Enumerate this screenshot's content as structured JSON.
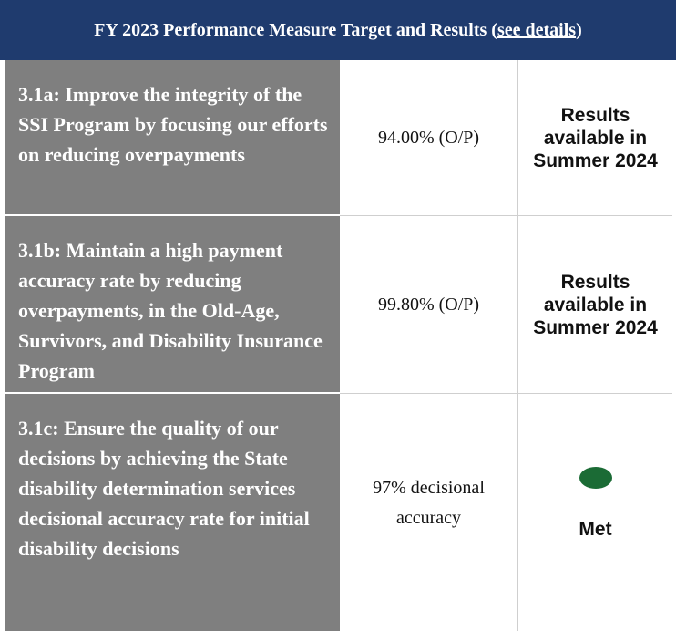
{
  "header": {
    "title": "FY 2023 Performance Measure Target and Results (",
    "link": "see details",
    "title_end": ")"
  },
  "rows": [
    {
      "measure": "3.1a:  Improve the integrity of the SSI Program by focusing our efforts on reducing overpayments",
      "target": "94.00% (O/P)",
      "result": "Results available in Summer 2024"
    },
    {
      "measure": "3.1b:  Maintain a high payment accuracy rate by reducing overpayments, in the Old-Age, Survivors, and Disability Insurance Program",
      "target": "99.80% (O/P)",
      "result": "Results available in Summer 2024"
    },
    {
      "measure": "3.1c:  Ensure the quality of our decisions by achieving the State disability determination services decisional accuracy rate for initial disability decisions",
      "target": "97% decisional accuracy",
      "result": "Met"
    }
  ]
}
